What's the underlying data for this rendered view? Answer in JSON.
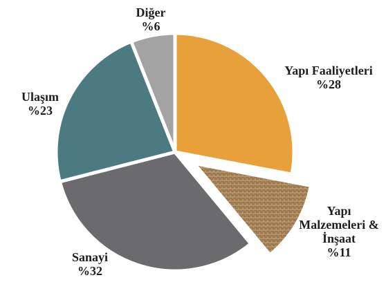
{
  "chart_data": {
    "type": "pie",
    "categories": [
      "Yapı Faaliyetleri",
      "Yapı Malzemeleri & İnşaat",
      "Sanayi",
      "Ulaşım",
      "Diğer"
    ],
    "values": [
      28,
      11,
      32,
      23,
      6
    ],
    "value_labels": [
      "%28",
      "%11",
      "%32",
      "%23",
      "%6"
    ],
    "colors": [
      "#e8a13a",
      "#9a7850",
      "#6b6b6d",
      "#4b7b81",
      "#a3a3a3"
    ]
  }
}
